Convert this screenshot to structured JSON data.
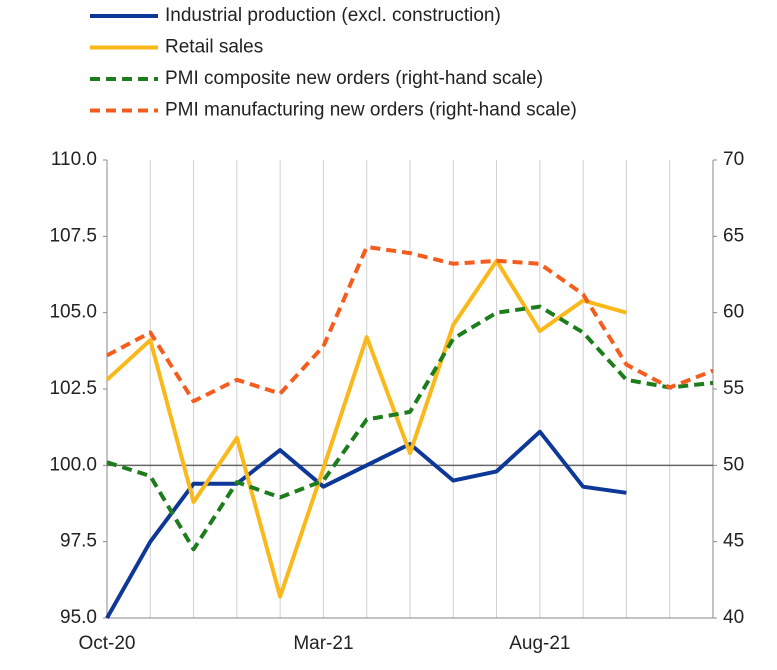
{
  "chart_data": {
    "type": "line",
    "categories": [
      "Oct-20",
      null,
      null,
      null,
      null,
      "Mar-21",
      null,
      null,
      null,
      null,
      "Aug-21",
      null,
      null,
      null,
      null
    ],
    "series": [
      {
        "name": "Industrial production (excl. construction)",
        "color": "#0d3897",
        "line_style": "solid",
        "axis": "y",
        "values": [
          95.0,
          97.5,
          99.4,
          99.4,
          100.5,
          99.3,
          100.0,
          100.7,
          99.5,
          99.8,
          101.1,
          99.3,
          99.1,
          null,
          null
        ]
      },
      {
        "name": "Retail sales",
        "color": "#fbb81b",
        "line_style": "solid",
        "axis": "y",
        "values": [
          102.8,
          104.1,
          98.8,
          100.9,
          95.7,
          99.9,
          104.2,
          100.4,
          104.6,
          106.7,
          104.4,
          105.4,
          105.0,
          null,
          null
        ]
      },
      {
        "name": "PMI composite new orders (right-hand scale)",
        "color": "#1d7d1d",
        "line_style": "dashed",
        "axis": "y2",
        "values": [
          50.2,
          49.3,
          44.5,
          48.9,
          47.9,
          49.0,
          53.0,
          53.5,
          58.3,
          60.0,
          60.4,
          58.7,
          55.6,
          55.1,
          55.4
        ]
      },
      {
        "name": "PMI manufacturing new orders (right-hand scale)",
        "color": "#f55d1f",
        "line_style": "dashed",
        "axis": "y2",
        "values": [
          57.2,
          58.7,
          54.2,
          55.6,
          54.7,
          57.8,
          64.3,
          63.9,
          63.2,
          63.4,
          63.2,
          61.2,
          56.6,
          55.1,
          56.2
        ]
      }
    ],
    "ylim": [
      95,
      110
    ],
    "yticks": [
      {
        "value": 95,
        "label": "95.0"
      },
      {
        "value": 97.5,
        "label": "97.5"
      },
      {
        "value": 100,
        "label": "100.0"
      },
      {
        "value": 102.5,
        "label": "102.5"
      },
      {
        "value": 105,
        "label": "105.0"
      },
      {
        "value": 107.5,
        "label": "107.5"
      },
      {
        "value": 110,
        "label": "110.0"
      }
    ],
    "y2lim": [
      40,
      70
    ],
    "y2ticks": [
      40,
      45,
      50,
      55,
      60,
      65,
      70
    ],
    "baseline": 100,
    "grid": "vertical",
    "legend": "top"
  }
}
